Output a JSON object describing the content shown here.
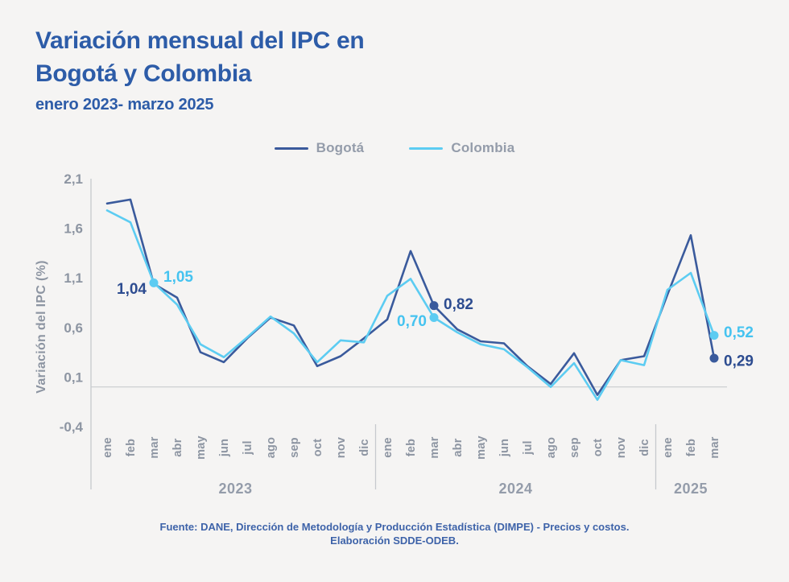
{
  "title": {
    "line1": "Variación mensual del IPC en",
    "line2": "Bogotá y Colombia",
    "subtitle": "enero 2023- marzo 2025"
  },
  "legend": {
    "items": [
      {
        "label": "Bogotá",
        "color": "#3a5a9c"
      },
      {
        "label": "Colombia",
        "color": "#5cccf2"
      }
    ]
  },
  "footer": {
    "line1": "Fuente: DANE, Dirección de Metodología y Producción Estadística (DIMPE) - Precios y costos.",
    "line2": "Elaboración SDDE-ODEB."
  },
  "chart_data": {
    "type": "line",
    "ylabel": "Variación del IPC (%)",
    "ylim": [
      -0.4,
      2.1
    ],
    "yticks": [
      2.1,
      1.6,
      1.1,
      0.6,
      0.1,
      -0.4
    ],
    "ytick_labels": [
      "2,1",
      "1,6",
      "1,1",
      "0,6",
      "0,1",
      "-0,4"
    ],
    "grid": "zero-line-only",
    "legend_position": "top-center",
    "categories": [
      "ene",
      "feb",
      "mar",
      "abr",
      "may",
      "jun",
      "jul",
      "ago",
      "sep",
      "oct",
      "nov",
      "dic",
      "ene",
      "feb",
      "mar",
      "abr",
      "may",
      "jun",
      "jul",
      "ago",
      "sep",
      "oct",
      "nov",
      "dic",
      "ene",
      "feb",
      "mar"
    ],
    "year_groups": [
      {
        "label": "2023",
        "start": 0,
        "end": 11
      },
      {
        "label": "2024",
        "start": 12,
        "end": 23
      },
      {
        "label": "2025",
        "start": 24,
        "end": 26
      }
    ],
    "series": [
      {
        "name": "Bogotá",
        "color": "#3a5a9c",
        "label_color": "#2d4c90",
        "values": [
          1.85,
          1.89,
          1.04,
          0.9,
          0.35,
          0.25,
          0.49,
          0.7,
          0.62,
          0.21,
          0.31,
          0.49,
          0.68,
          1.37,
          0.82,
          0.58,
          0.46,
          0.44,
          0.21,
          0.03,
          0.34,
          -0.08,
          0.27,
          0.31,
          0.93,
          1.53,
          0.29
        ]
      },
      {
        "name": "Colombia",
        "color": "#5cccf2",
        "label_color": "#45c3f0",
        "values": [
          1.78,
          1.66,
          1.05,
          0.83,
          0.43,
          0.3,
          0.5,
          0.71,
          0.54,
          0.25,
          0.47,
          0.45,
          0.92,
          1.09,
          0.7,
          0.55,
          0.43,
          0.38,
          0.2,
          0.0,
          0.24,
          -0.13,
          0.27,
          0.22,
          0.98,
          1.15,
          0.52
        ]
      }
    ],
    "annotations": [
      {
        "series": 0,
        "index": 2,
        "label": "1,04",
        "side": "left",
        "dy": 7,
        "marker": false
      },
      {
        "series": 1,
        "index": 2,
        "label": "1,05",
        "side": "right",
        "dy": -7,
        "marker": true
      },
      {
        "series": 1,
        "index": 14,
        "label": "0,70",
        "side": "left",
        "dy": 5,
        "marker": true
      },
      {
        "series": 0,
        "index": 14,
        "label": "0,82",
        "side": "right",
        "dy": -1,
        "marker": true
      },
      {
        "series": 1,
        "index": 26,
        "label": "0,52",
        "side": "right",
        "dy": -3,
        "marker": true
      },
      {
        "series": 0,
        "index": 26,
        "label": "0,29",
        "side": "right",
        "dy": 4,
        "marker": true
      }
    ]
  }
}
